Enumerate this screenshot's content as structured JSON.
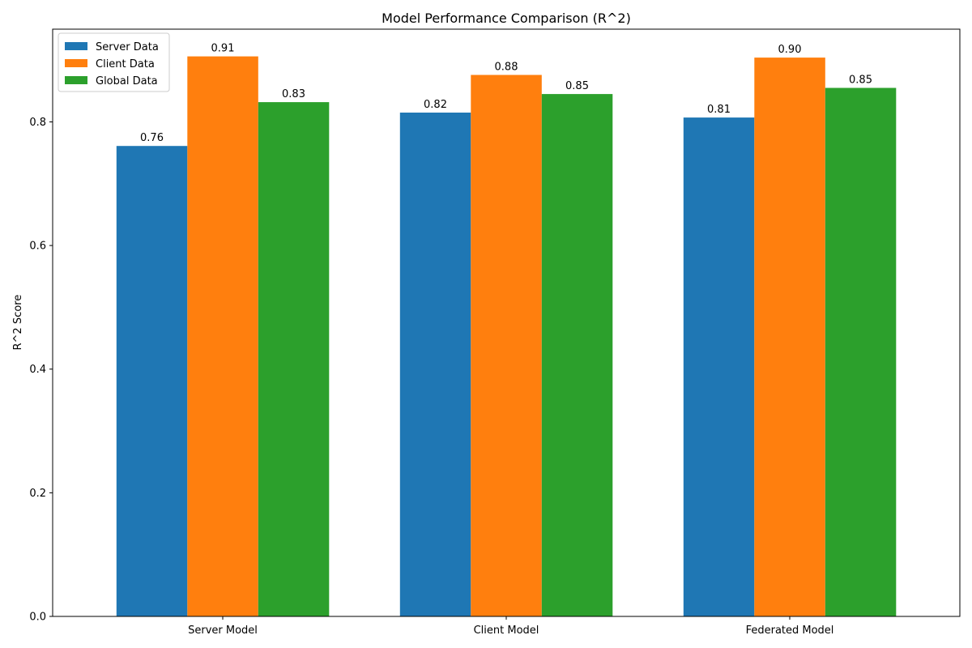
{
  "chart_data": {
    "type": "bar",
    "title": "Model Performance Comparison (R^2)",
    "xlabel": "",
    "ylabel": "R^2 Score",
    "categories": [
      "Server Model",
      "Client Model",
      "Federated Model"
    ],
    "series": [
      {
        "name": "Server Data",
        "values": [
          0.761,
          0.815,
          0.807
        ],
        "labels": [
          "0.76",
          "0.82",
          "0.81"
        ],
        "color": "#1f77b4"
      },
      {
        "name": "Client Data",
        "values": [
          0.906,
          0.876,
          0.904
        ],
        "labels": [
          "0.91",
          "0.88",
          "0.90"
        ],
        "color": "#ff7f0e"
      },
      {
        "name": "Global Data",
        "values": [
          0.832,
          0.845,
          0.855
        ],
        "labels": [
          "0.83",
          "0.85",
          "0.85"
        ],
        "color": "#2ca02c"
      }
    ],
    "ylim": [
      0,
      0.95
    ],
    "yticks": [
      0.0,
      0.2,
      0.4,
      0.6,
      0.8
    ],
    "ytick_labels": [
      "0.0",
      "0.2",
      "0.4",
      "0.6",
      "0.8"
    ],
    "grid": false,
    "legend_position": "top-left"
  }
}
